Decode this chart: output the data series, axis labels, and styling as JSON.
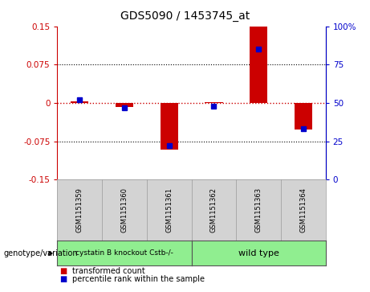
{
  "title": "GDS5090 / 1453745_at",
  "samples": [
    "GSM1151359",
    "GSM1151360",
    "GSM1151361",
    "GSM1151362",
    "GSM1151363",
    "GSM1151364"
  ],
  "red_values": [
    0.003,
    -0.008,
    -0.092,
    0.002,
    0.15,
    -0.052
  ],
  "blue_percentiles": [
    52,
    47,
    22,
    48,
    85,
    33
  ],
  "ylim_left": [
    -0.15,
    0.15
  ],
  "ylim_right": [
    0,
    100
  ],
  "yticks_left": [
    -0.15,
    -0.075,
    0,
    0.075,
    0.15
  ],
  "yticks_right": [
    0,
    25,
    50,
    75,
    100
  ],
  "ytick_labels_right": [
    "0",
    "25",
    "50",
    "75",
    "100%"
  ],
  "red_color": "#cc0000",
  "blue_color": "#0000cc",
  "bar_width": 0.4,
  "blue_marker_size": 5,
  "groups": [
    {
      "label": "cystatin B knockout Cstb-/-",
      "indices": [
        0,
        1,
        2
      ],
      "color": "#90ee90"
    },
    {
      "label": "wild type",
      "indices": [
        3,
        4,
        5
      ],
      "color": "#90ee90"
    }
  ],
  "group_label_prefix": "genotype/variation",
  "legend_red": "transformed count",
  "legend_blue": "percentile rank within the sample",
  "plot_bg": "#ffffff",
  "grid_color": "#000000",
  "zero_line_color": "#cc0000",
  "sample_box_color": "#d3d3d3",
  "figure_width": 4.61,
  "figure_height": 3.63,
  "dpi": 100
}
